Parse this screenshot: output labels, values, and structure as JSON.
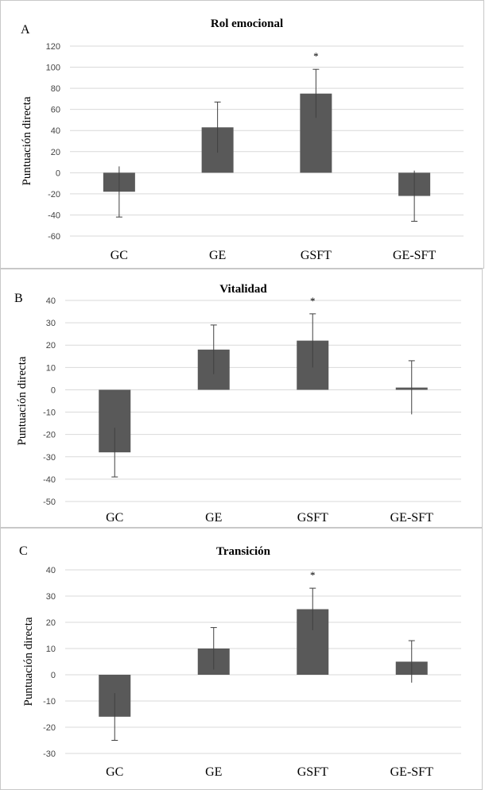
{
  "chart_data": [
    {
      "type": "bar",
      "panel_letter": "A",
      "title": "Rol emocional",
      "ylabel": "Puntuación  directa",
      "xlabel": "",
      "categories": [
        "GC",
        "GE",
        "GSFT",
        "GE-SFT"
      ],
      "values": [
        -18,
        43,
        75,
        -22
      ],
      "error": [
        24,
        24,
        23,
        24
      ],
      "significance": [
        "",
        "",
        "*",
        ""
      ],
      "ylim": [
        -60,
        120
      ],
      "yticks": [
        -60,
        -40,
        -20,
        0,
        20,
        40,
        60,
        80,
        100,
        120
      ]
    },
    {
      "type": "bar",
      "panel_letter": "B",
      "title": "Vitalidad",
      "ylabel": "Puntuación  directa",
      "xlabel": "",
      "categories": [
        "GC",
        "GE",
        "GSFT",
        "GE-SFT"
      ],
      "values": [
        -28,
        18,
        22,
        1
      ],
      "error": [
        11,
        11,
        12,
        12
      ],
      "significance": [
        "",
        "",
        "*",
        ""
      ],
      "ylim": [
        -50,
        40
      ],
      "yticks": [
        -50,
        -40,
        -30,
        -20,
        -10,
        0,
        10,
        20,
        30,
        40
      ]
    },
    {
      "type": "bar",
      "panel_letter": "C",
      "title": "Transición",
      "ylabel": "Puntuación  directa",
      "xlabel": "",
      "categories": [
        "GC",
        "GE",
        "GSFT",
        "GE-SFT"
      ],
      "values": [
        -16,
        10,
        25,
        5
      ],
      "error": [
        9,
        8,
        8,
        8
      ],
      "significance": [
        "",
        "",
        "*",
        ""
      ],
      "ylim": [
        -30,
        40
      ],
      "yticks": [
        -30,
        -20,
        -10,
        0,
        10,
        20,
        30,
        40
      ]
    }
  ]
}
